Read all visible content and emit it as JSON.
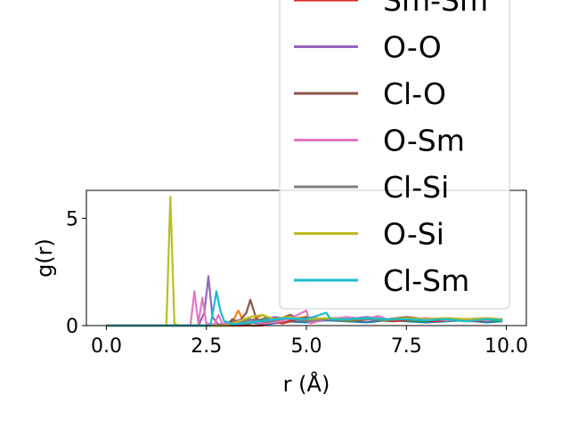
{
  "chart_data": {
    "type": "line",
    "xlabel": "r (Å)",
    "ylabel": "g(r)",
    "xlim": [
      -0.5,
      10.5
    ],
    "ylim": [
      0,
      6.3
    ],
    "xticks": [
      "0.0",
      "2.5",
      "5.0",
      "7.5",
      "10.0"
    ],
    "xtick_values": [
      0,
      2.5,
      5,
      7.5,
      10
    ],
    "yticks": [
      "0",
      "5"
    ],
    "ytick_values": [
      0,
      5
    ],
    "grid": false,
    "legend_position": "upper-right",
    "series": [
      {
        "name": "",
        "color": "#1f77b4",
        "points": [
          [
            0,
            0
          ],
          [
            3.0,
            0
          ],
          [
            3.2,
            0.1
          ],
          [
            3.4,
            0.05
          ],
          [
            3.6,
            0.15
          ],
          [
            4.0,
            0.05
          ],
          [
            4.5,
            0.2
          ],
          [
            5.0,
            0.15
          ],
          [
            5.5,
            0.25
          ],
          [
            6.0,
            0.2
          ],
          [
            6.5,
            0.15
          ],
          [
            7.0,
            0.25
          ],
          [
            7.5,
            0.2
          ],
          [
            8.0,
            0.15
          ],
          [
            8.5,
            0.2
          ],
          [
            9.0,
            0.25
          ],
          [
            9.5,
            0.15
          ],
          [
            9.9,
            0.2
          ]
        ]
      },
      {
        "name": "",
        "color": "#ff7f0e",
        "points": [
          [
            0,
            0
          ],
          [
            3.1,
            0
          ],
          [
            3.3,
            0.7
          ],
          [
            3.45,
            0.1
          ],
          [
            3.7,
            0.3
          ],
          [
            3.9,
            0.5
          ],
          [
            4.1,
            0.2
          ],
          [
            4.5,
            0.3
          ],
          [
            5.0,
            0.4
          ],
          [
            5.5,
            0.3
          ],
          [
            6.0,
            0.35
          ],
          [
            6.5,
            0.3
          ],
          [
            7.0,
            0.25
          ],
          [
            7.5,
            0.3
          ],
          [
            8.0,
            0.25
          ],
          [
            8.5,
            0.3
          ],
          [
            9.0,
            0.25
          ],
          [
            9.5,
            0.3
          ],
          [
            9.9,
            0.25
          ]
        ]
      },
      {
        "name": "",
        "color": "#2ca02c",
        "points": [
          [
            0,
            0
          ],
          [
            3.5,
            0
          ],
          [
            3.7,
            0.2
          ],
          [
            4.0,
            0.35
          ],
          [
            4.3,
            0.15
          ],
          [
            4.7,
            0.3
          ],
          [
            5.1,
            0.25
          ],
          [
            5.6,
            0.3
          ],
          [
            6.1,
            0.2
          ],
          [
            6.6,
            0.3
          ],
          [
            7.1,
            0.2
          ],
          [
            7.6,
            0.25
          ],
          [
            8.1,
            0.2
          ],
          [
            8.6,
            0.25
          ],
          [
            9.1,
            0.2
          ],
          [
            9.6,
            0.25
          ],
          [
            9.9,
            0.2
          ]
        ]
      },
      {
        "name": "Sm-Sm",
        "color": "#d62728",
        "points": [
          [
            0,
            0
          ],
          [
            3.9,
            0
          ],
          [
            4.1,
            0.2
          ],
          [
            4.4,
            0.1
          ],
          [
            4.8,
            0.3
          ],
          [
            5.2,
            0.2
          ],
          [
            5.7,
            0.35
          ],
          [
            6.2,
            0.25
          ],
          [
            6.7,
            0.3
          ],
          [
            7.2,
            0.2
          ],
          [
            7.7,
            0.3
          ],
          [
            8.2,
            0.2
          ],
          [
            8.7,
            0.3
          ],
          [
            9.2,
            0.2
          ],
          [
            9.7,
            0.3
          ],
          [
            9.9,
            0.25
          ]
        ]
      },
      {
        "name": "O-O",
        "color": "#9467bd",
        "points": [
          [
            0,
            0
          ],
          [
            2.3,
            0
          ],
          [
            2.45,
            0.6
          ],
          [
            2.55,
            2.3
          ],
          [
            2.65,
            0.4
          ],
          [
            2.8,
            0.05
          ],
          [
            3.0,
            0.1
          ],
          [
            3.4,
            0.3
          ],
          [
            3.8,
            0.2
          ],
          [
            4.2,
            0.4
          ],
          [
            4.6,
            0.3
          ],
          [
            5.0,
            0.35
          ],
          [
            5.5,
            0.3
          ],
          [
            6.0,
            0.3
          ],
          [
            6.5,
            0.4
          ],
          [
            7.0,
            0.3
          ],
          [
            7.5,
            0.35
          ],
          [
            8.0,
            0.25
          ],
          [
            8.5,
            0.3
          ],
          [
            9.0,
            0.25
          ],
          [
            9.5,
            0.3
          ],
          [
            9.9,
            0.25
          ]
        ]
      },
      {
        "name": "Cl-O",
        "color": "#8c564b",
        "points": [
          [
            0,
            0
          ],
          [
            3.0,
            0
          ],
          [
            3.15,
            0.3
          ],
          [
            3.3,
            0.15
          ],
          [
            3.5,
            0.6
          ],
          [
            3.6,
            1.2
          ],
          [
            3.75,
            0.3
          ],
          [
            4.0,
            0.2
          ],
          [
            4.3,
            0.3
          ],
          [
            4.6,
            0.5
          ],
          [
            4.8,
            0.3
          ],
          [
            5.0,
            0.4
          ],
          [
            5.3,
            0.25
          ],
          [
            5.6,
            0.35
          ],
          [
            6.0,
            0.3
          ],
          [
            6.5,
            0.35
          ],
          [
            7.0,
            0.3
          ],
          [
            7.5,
            0.4
          ],
          [
            8.0,
            0.3
          ],
          [
            8.5,
            0.35
          ],
          [
            9.0,
            0.3
          ],
          [
            9.5,
            0.35
          ],
          [
            9.9,
            0.3
          ]
        ]
      },
      {
        "name": "O-Sm",
        "color": "#e377c2",
        "points": [
          [
            0,
            0
          ],
          [
            2.1,
            0
          ],
          [
            2.2,
            1.6
          ],
          [
            2.3,
            0.1
          ],
          [
            2.4,
            1.3
          ],
          [
            2.5,
            0.1
          ],
          [
            2.7,
            0.05
          ],
          [
            2.8,
            0.5
          ],
          [
            2.9,
            0.1
          ],
          [
            3.2,
            0.1
          ],
          [
            3.5,
            0.2
          ],
          [
            4.0,
            0.1
          ],
          [
            4.5,
            0.25
          ],
          [
            5.0,
            0.7
          ],
          [
            5.1,
            0.1
          ],
          [
            5.5,
            0.3
          ],
          [
            6.0,
            0.4
          ],
          [
            6.5,
            0.3
          ],
          [
            6.8,
            0.45
          ],
          [
            7.0,
            0.3
          ],
          [
            7.5,
            0.3
          ],
          [
            8.0,
            0.35
          ],
          [
            8.5,
            0.25
          ],
          [
            9.0,
            0.3
          ],
          [
            9.5,
            0.25
          ],
          [
            9.9,
            0.3
          ]
        ]
      },
      {
        "name": "Cl-Si",
        "color": "#7f7f7f",
        "points": [
          [
            0,
            0
          ],
          [
            3.0,
            0
          ],
          [
            3.3,
            0.1
          ],
          [
            3.6,
            0.3
          ],
          [
            4.0,
            0.15
          ],
          [
            4.5,
            0.35
          ],
          [
            5.0,
            0.2
          ],
          [
            5.5,
            0.3
          ],
          [
            6.0,
            0.25
          ],
          [
            6.5,
            0.3
          ],
          [
            7.0,
            0.25
          ],
          [
            7.5,
            0.3
          ],
          [
            8.0,
            0.25
          ],
          [
            8.5,
            0.3
          ],
          [
            9.0,
            0.2
          ],
          [
            9.5,
            0.3
          ],
          [
            9.9,
            0.25
          ]
        ]
      },
      {
        "name": "O-Si",
        "color": "#bcbd22",
        "points": [
          [
            0,
            0
          ],
          [
            1.5,
            0
          ],
          [
            1.6,
            6.0
          ],
          [
            1.7,
            0.1
          ],
          [
            1.8,
            0
          ],
          [
            3.0,
            0
          ],
          [
            3.3,
            0.2
          ],
          [
            3.6,
            0.4
          ],
          [
            3.9,
            0.5
          ],
          [
            4.2,
            0.3
          ],
          [
            4.5,
            0.4
          ],
          [
            5.0,
            0.3
          ],
          [
            5.5,
            0.35
          ],
          [
            6.0,
            0.3
          ],
          [
            6.5,
            0.35
          ],
          [
            7.0,
            0.3
          ],
          [
            7.5,
            0.35
          ],
          [
            8.0,
            0.3
          ],
          [
            8.5,
            0.35
          ],
          [
            9.0,
            0.3
          ],
          [
            9.5,
            0.35
          ],
          [
            9.9,
            0.3
          ]
        ]
      },
      {
        "name": "Cl-Sm",
        "color": "#17becf",
        "points": [
          [
            0,
            0
          ],
          [
            2.6,
            0
          ],
          [
            2.7,
            1.0
          ],
          [
            2.75,
            1.6
          ],
          [
            2.85,
            0.7
          ],
          [
            2.95,
            0.2
          ],
          [
            3.2,
            0.05
          ],
          [
            3.6,
            0.15
          ],
          [
            4.0,
            0.25
          ],
          [
            4.5,
            0.35
          ],
          [
            5.0,
            0.3
          ],
          [
            5.5,
            0.6
          ],
          [
            5.6,
            0.3
          ],
          [
            6.0,
            0.3
          ],
          [
            6.5,
            0.35
          ],
          [
            7.0,
            0.3
          ],
          [
            7.5,
            0.3
          ],
          [
            8.0,
            0.25
          ],
          [
            8.5,
            0.3
          ],
          [
            9.0,
            0.2
          ],
          [
            9.5,
            0.3
          ],
          [
            9.9,
            0.25
          ]
        ]
      }
    ]
  }
}
